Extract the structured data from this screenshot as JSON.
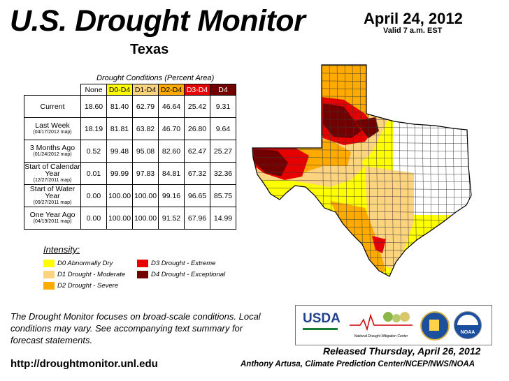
{
  "header": {
    "title": "U.S. Drought Monitor",
    "region": "Texas",
    "date": "April 24, 2012",
    "valid": "Valid 7 a.m. EST"
  },
  "table": {
    "caption": "Drought Conditions (Percent Area)",
    "columns": [
      "None",
      "D0-D4",
      "D1-D4",
      "D2-D4",
      "D3-D4",
      "D4"
    ],
    "column_colors": [
      "#ffffff",
      "#ffff00",
      "#fcd37f",
      "#ffaa00",
      "#e60000",
      "#730000"
    ],
    "rows": [
      {
        "label": "Current",
        "sub": "",
        "values": [
          "18.60",
          "81.40",
          "62.79",
          "46.64",
          "25.42",
          "9.31"
        ]
      },
      {
        "label": "Last Week",
        "sub": "(04/17/2012 map)",
        "values": [
          "18.19",
          "81.81",
          "63.82",
          "46.70",
          "26.80",
          "9.64"
        ]
      },
      {
        "label": "3 Months Ago",
        "sub": "(01/24/2012 map)",
        "values": [
          "0.52",
          "99.48",
          "95.08",
          "82.60",
          "62.47",
          "25.27"
        ]
      },
      {
        "label": "Start of Calendar Year",
        "sub": "(12/27/2011 map)",
        "values": [
          "0.01",
          "99.99",
          "97.83",
          "84.81",
          "67.32",
          "32.36"
        ]
      },
      {
        "label": "Start of Water Year",
        "sub": "(09/27/2011 map)",
        "values": [
          "0.00",
          "100.00",
          "100.00",
          "99.16",
          "96.65",
          "85.75"
        ]
      },
      {
        "label": "One Year Ago",
        "sub": "(04/19/2011 map)",
        "values": [
          "0.00",
          "100.00",
          "100.00",
          "91.52",
          "67.96",
          "14.99"
        ]
      }
    ]
  },
  "legend": {
    "title": "Intensity:",
    "items": [
      {
        "label": "D0 Abnormally Dry",
        "color": "#ffff00"
      },
      {
        "label": "D1 Drought - Moderate",
        "color": "#fcd37f"
      },
      {
        "label": "D2 Drought - Severe",
        "color": "#ffaa00"
      },
      {
        "label": "D3 Drought - Extreme",
        "color": "#e60000"
      },
      {
        "label": "D4 Drought - Exceptional",
        "color": "#730000"
      }
    ]
  },
  "footnote": "The Drought Monitor focuses on broad-scale conditions. Local conditions may vary. See accompanying text summary for forecast statements.",
  "url": "http://droughtmonitor.unl.edu",
  "released": "Released Thursday, April 26, 2012",
  "credit": "Anthony Artusa, Climate Prediction Center/NCEP/NWS/NOAA",
  "logos": {
    "usda": "USDA",
    "ndmc": "National Drought Mitigation Center",
    "doc_icon": "commerce-seal-icon",
    "noaa": "NOAA"
  }
}
